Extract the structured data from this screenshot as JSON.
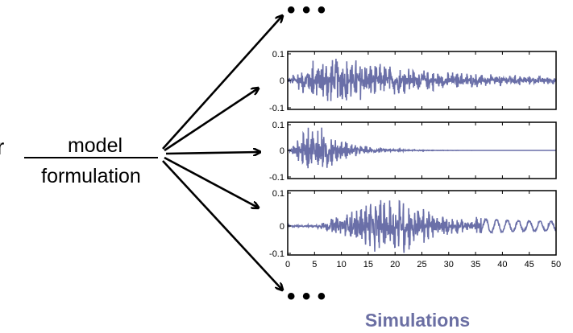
{
  "diagram": {
    "left_edge_char": "r",
    "model_label_top": "model",
    "model_label_bottom": "formulation",
    "ellipsis_top": "• • •",
    "ellipsis_bottom": "• • •",
    "caption": "Simulations",
    "caption_color": "#6b6fa3",
    "signal_color": "#6a6fa8",
    "arrow_color": "#000000"
  },
  "plots": [
    {
      "name": "simulation-1",
      "y_ticks": [
        "0.1",
        "0",
        "-0.1"
      ],
      "envelope": "early-broad"
    },
    {
      "name": "simulation-2",
      "y_ticks": [
        "0.1",
        "0",
        "-0.1"
      ],
      "envelope": "early-decay"
    },
    {
      "name": "simulation-3",
      "y_ticks": [
        "0.1",
        "0",
        "-0.1"
      ],
      "envelope": "late"
    }
  ],
  "x_axis": {
    "ticks": [
      "0",
      "5",
      "10",
      "15",
      "20",
      "25",
      "30",
      "35",
      "40",
      "45",
      "50"
    ]
  }
}
